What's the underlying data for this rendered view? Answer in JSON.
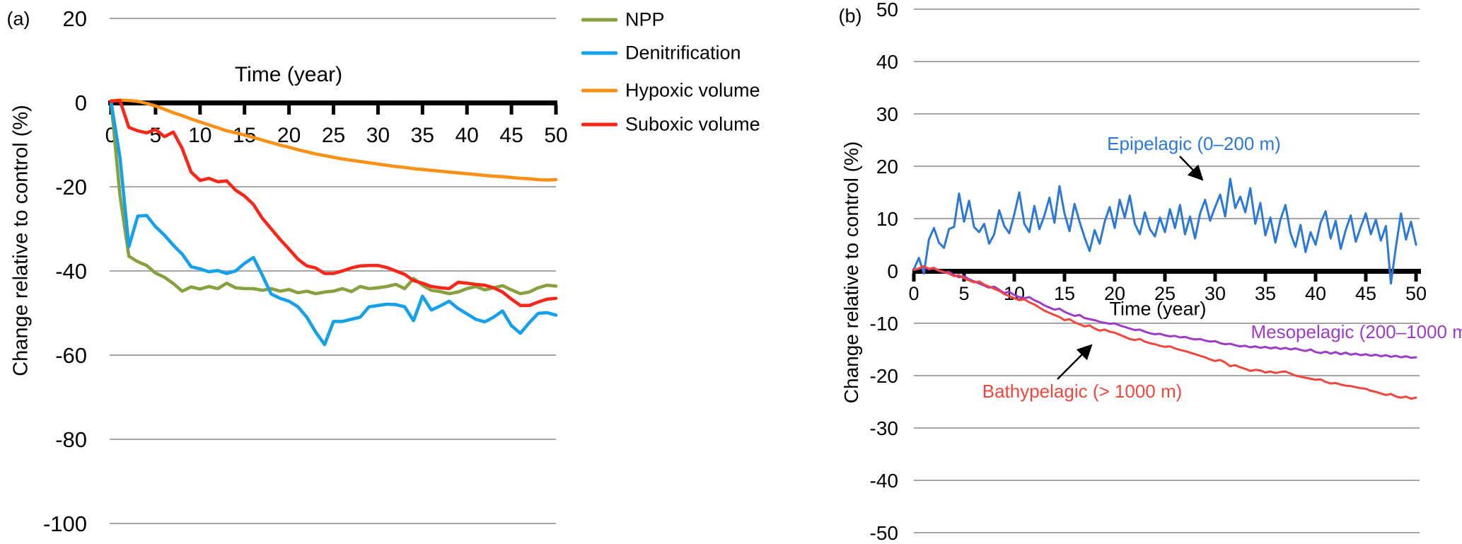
{
  "panels": [
    {
      "label": "(a)",
      "ylabel": "Change relative to control (%)",
      "xlabel": "Time (year)"
    },
    {
      "label": "(b)",
      "ylabel": "Change relative to control (%)",
      "xlabel": "Time (year)",
      "annotations": [
        {
          "name": "epipelagic",
          "text": "Epipelagic (0–200 m)",
          "color": "#2B78D8"
        },
        {
          "name": "mesopelagic",
          "text": "Mesopelagic (200–1000 m)",
          "color": "#9D3BCB"
        },
        {
          "name": "bathypelagic",
          "text": "Bathypelagic (> 1000 m)",
          "color": "#F2463C"
        }
      ]
    }
  ],
  "colors": {
    "gridline": "#A6A6A6",
    "axis": "#000000"
  },
  "chart_data": [
    {
      "type": "line",
      "panel": "a",
      "xlabel": "Time (year)",
      "ylabel": "Change relative to control (%)",
      "xlim": [
        0,
        50
      ],
      "ylim": [
        -100,
        20
      ],
      "x_ticks": [
        0,
        5,
        10,
        15,
        20,
        25,
        30,
        35,
        40,
        45,
        50
      ],
      "y_ticks": [
        20,
        0,
        -20,
        -40,
        -60,
        -80,
        -100
      ],
      "grid": true,
      "legend_position": "right",
      "series": [
        {
          "name": "NPP",
          "color": "#87A13E",
          "x_start": 0,
          "x_step": 1,
          "values": [
            0.3,
            -22,
            -36.5,
            -37.8,
            -38.7,
            -40.5,
            -41.5,
            -43,
            -44.8,
            -43.8,
            -44.3,
            -43.7,
            -44.2,
            -42.9,
            -44,
            -44.2,
            -44.2,
            -44.6,
            -44.2,
            -44.8,
            -44.4,
            -45.2,
            -44.8,
            -45.4,
            -45,
            -44.8,
            -44.2,
            -44.9,
            -43.7,
            -44.2,
            -44,
            -43.7,
            -43.2,
            -44.2,
            -41.8,
            -43.4,
            -44.6,
            -44.9,
            -45.4,
            -45,
            -44.2,
            -43.7,
            -44.5,
            -44,
            -43.5,
            -44.5,
            -45.4,
            -45,
            -44,
            -43.4,
            -43.6
          ]
        },
        {
          "name": "Denitrification",
          "color": "#14A0EB",
          "x_start": 0,
          "x_step": 1,
          "values": [
            0.2,
            -13,
            -34.2,
            -27,
            -26.8,
            -29.5,
            -31.5,
            -33.9,
            -36,
            -39,
            -39.5,
            -40.2,
            -39.9,
            -40.6,
            -40,
            -38.2,
            -36.8,
            -41,
            -45.5,
            -46.5,
            -47.2,
            -48.5,
            -51,
            -54.5,
            -57.5,
            -52,
            -52,
            -51.5,
            -51,
            -48.5,
            -48.2,
            -47.9,
            -48,
            -48.5,
            -51.8,
            -46,
            -49.3,
            -48.3,
            -47.2,
            -48.9,
            -50.2,
            -51.5,
            -52.1,
            -51,
            -49.5,
            -53,
            -54.8,
            -52.3,
            -50.1,
            -49.9,
            -50.5
          ]
        },
        {
          "name": "Hypoxic volume",
          "color": "#FB9017",
          "x_start": 0,
          "x_step": 1,
          "values": [
            0.4,
            0.6,
            0.5,
            0.3,
            -0.2,
            -0.8,
            -1.6,
            -2.4,
            -3.1,
            -3.9,
            -4.6,
            -5.3,
            -6,
            -6.7,
            -7.2,
            -7.7,
            -8.3,
            -8.9,
            -9.5,
            -10.1,
            -10.6,
            -11.2,
            -11.7,
            -12.2,
            -12.6,
            -13,
            -13.4,
            -13.7,
            -14,
            -14.3,
            -14.6,
            -14.9,
            -15.2,
            -15.4,
            -15.7,
            -15.9,
            -16.1,
            -16.3,
            -16.5,
            -16.7,
            -16.9,
            -17.1,
            -17.3,
            -17.5,
            -17.6,
            -17.8,
            -18,
            -18.1,
            -18.3,
            -18.4,
            -18.3
          ]
        },
        {
          "name": "Suboxic volume",
          "color": "#F9271A",
          "x_start": 0,
          "x_step": 1,
          "values": [
            0.3,
            0.5,
            -5.9,
            -6.7,
            -7.2,
            -6.4,
            -8.1,
            -7,
            -10.9,
            -16.5,
            -18.5,
            -18,
            -18.8,
            -18.6,
            -20.8,
            -22.2,
            -24.2,
            -27.5,
            -30,
            -32.5,
            -34.8,
            -37.2,
            -38.8,
            -39.3,
            -40.6,
            -40.6,
            -40,
            -39.3,
            -38.8,
            -38.7,
            -38.7,
            -39.2,
            -40,
            -40.8,
            -42.3,
            -42.9,
            -43.7,
            -44,
            -44.2,
            -42.7,
            -42.9,
            -43.2,
            -43.4,
            -44,
            -45,
            -46.7,
            -48.2,
            -48.2,
            -47.4,
            -46.7,
            -46.5
          ]
        }
      ]
    },
    {
      "type": "line",
      "panel": "b",
      "xlabel": "Time (year)",
      "ylabel": "Change relative to control (%)",
      "xlim": [
        0,
        50
      ],
      "ylim": [
        -50,
        50
      ],
      "x_ticks": [
        0,
        5,
        10,
        15,
        20,
        25,
        30,
        35,
        40,
        45,
        50
      ],
      "y_ticks": [
        50,
        40,
        30,
        20,
        10,
        0,
        -10,
        -20,
        -30,
        -40,
        -50
      ],
      "grid": true,
      "legend_position": "none",
      "series": [
        {
          "name": "Epipelagic (0–200 m)",
          "color": "#2B78D8",
          "x_start": 0,
          "x_step": 0.5,
          "values": [
            0.3,
            2.5,
            -0.5,
            6,
            8.2,
            5.4,
            4.4,
            8,
            8.4,
            14.8,
            9.4,
            13.4,
            8.4,
            7.4,
            9,
            5.2,
            7,
            11.6,
            8.6,
            7.2,
            10.8,
            15,
            9,
            7.4,
            12.4,
            8,
            10.6,
            14,
            9.2,
            16.2,
            11,
            7.6,
            12.8,
            9.4,
            6.4,
            3.8,
            7.8,
            5.2,
            9.4,
            12.2,
            8.2,
            13.6,
            10.2,
            14.4,
            9,
            7,
            11.2,
            8,
            6.6,
            10.2,
            7.4,
            11.8,
            8.2,
            12.6,
            7,
            10.4,
            6.2,
            11,
            13.6,
            9.6,
            12.2,
            14.6,
            10.4,
            17.6,
            12,
            14.2,
            11.2,
            15.8,
            9,
            13,
            6.8,
            10.2,
            5.4,
            9.8,
            12.6,
            7.2,
            4.6,
            8.8,
            3.6,
            7.4,
            5,
            9.2,
            11.4,
            6.2,
            9.6,
            4.2,
            7.8,
            10.6,
            5.6,
            8.4,
            11,
            7,
            9.8,
            5.8,
            8.6,
            -2.4,
            4.6,
            11,
            6,
            9.4,
            5
          ]
        },
        {
          "name": "Mesopelagic (200–1000 m)",
          "color": "#9D3BCB",
          "x_start": 0,
          "x_step": 0.5,
          "values": [
            0.2,
            0.4,
            0.8,
            0.3,
            0.5,
            0,
            -0.3,
            -0.2,
            -0.8,
            -1.2,
            -1,
            -1.6,
            -2,
            -2.4,
            -2.8,
            -3.2,
            -3,
            -3.6,
            -4.2,
            -4,
            -4.6,
            -5,
            -5.2,
            -5,
            -5.6,
            -6,
            -6.6,
            -7,
            -7.4,
            -7.2,
            -7.8,
            -8.2,
            -8.6,
            -8.4,
            -9,
            -9.2,
            -9.4,
            -9.7,
            -9.9,
            -10.1,
            -10,
            -10.4,
            -10.7,
            -11,
            -11.3,
            -11.2,
            -11.6,
            -11.9,
            -12.1,
            -12,
            -12.3,
            -12.5,
            -12.4,
            -12.7,
            -12.6,
            -12.9,
            -13.1,
            -13,
            -13.3,
            -13.5,
            -13.4,
            -13.8,
            -14,
            -13.9,
            -14.2,
            -14.4,
            -14.3,
            -14.6,
            -14.4,
            -14.7,
            -14.5,
            -14.8,
            -14.6,
            -14.9,
            -14.7,
            -15,
            -14.8,
            -15.1,
            -15.3,
            -15,
            -15.5,
            -15.7,
            -15.4,
            -15.8,
            -15.5,
            -15.9,
            -15.6,
            -16,
            -15.8,
            -16.1,
            -15.9,
            -16.2,
            -16,
            -16.3,
            -16.1,
            -16.4,
            -16.2,
            -16.5,
            -16.3,
            -16.6,
            -16.5
          ]
        },
        {
          "name": "Bathypelagic (> 1000 m)",
          "color": "#F2463C",
          "x_start": 0,
          "x_step": 0.5,
          "values": [
            0.2,
            0.5,
            0.9,
            0.4,
            0.6,
            0.1,
            -0.2,
            -0.5,
            -1,
            -0.8,
            -1.4,
            -1.8,
            -2.2,
            -2,
            -2.6,
            -3,
            -3.4,
            -3.8,
            -4.4,
            -4.8,
            -5.2,
            -5.6,
            -5.4,
            -6,
            -6.4,
            -7,
            -7.6,
            -8,
            -8.4,
            -8.8,
            -9.4,
            -9.2,
            -9.8,
            -10.2,
            -10.6,
            -10.4,
            -11,
            -11.4,
            -11.2,
            -11.6,
            -11.8,
            -12.2,
            -12.6,
            -13,
            -13.2,
            -13,
            -13.5,
            -13.8,
            -14,
            -14.3,
            -14.5,
            -14.4,
            -14.8,
            -15.1,
            -15.3,
            -15.6,
            -15.9,
            -16.2,
            -16.5,
            -16.9,
            -17.2,
            -17,
            -17.5,
            -18.2,
            -18,
            -18.4,
            -18.7,
            -19.1,
            -18.9,
            -19,
            -19.4,
            -19.2,
            -19.5,
            -19.3,
            -19.2,
            -19.6,
            -20,
            -20.2,
            -20.4,
            -20.6,
            -20.8,
            -20.7,
            -21.2,
            -21.5,
            -21.4,
            -21.7,
            -21.9,
            -22,
            -22.2,
            -22.4,
            -22.5,
            -22.9,
            -23.1,
            -23.4,
            -23.7,
            -23.5,
            -24,
            -24.2,
            -24,
            -24.4,
            -24.2
          ]
        }
      ]
    }
  ]
}
